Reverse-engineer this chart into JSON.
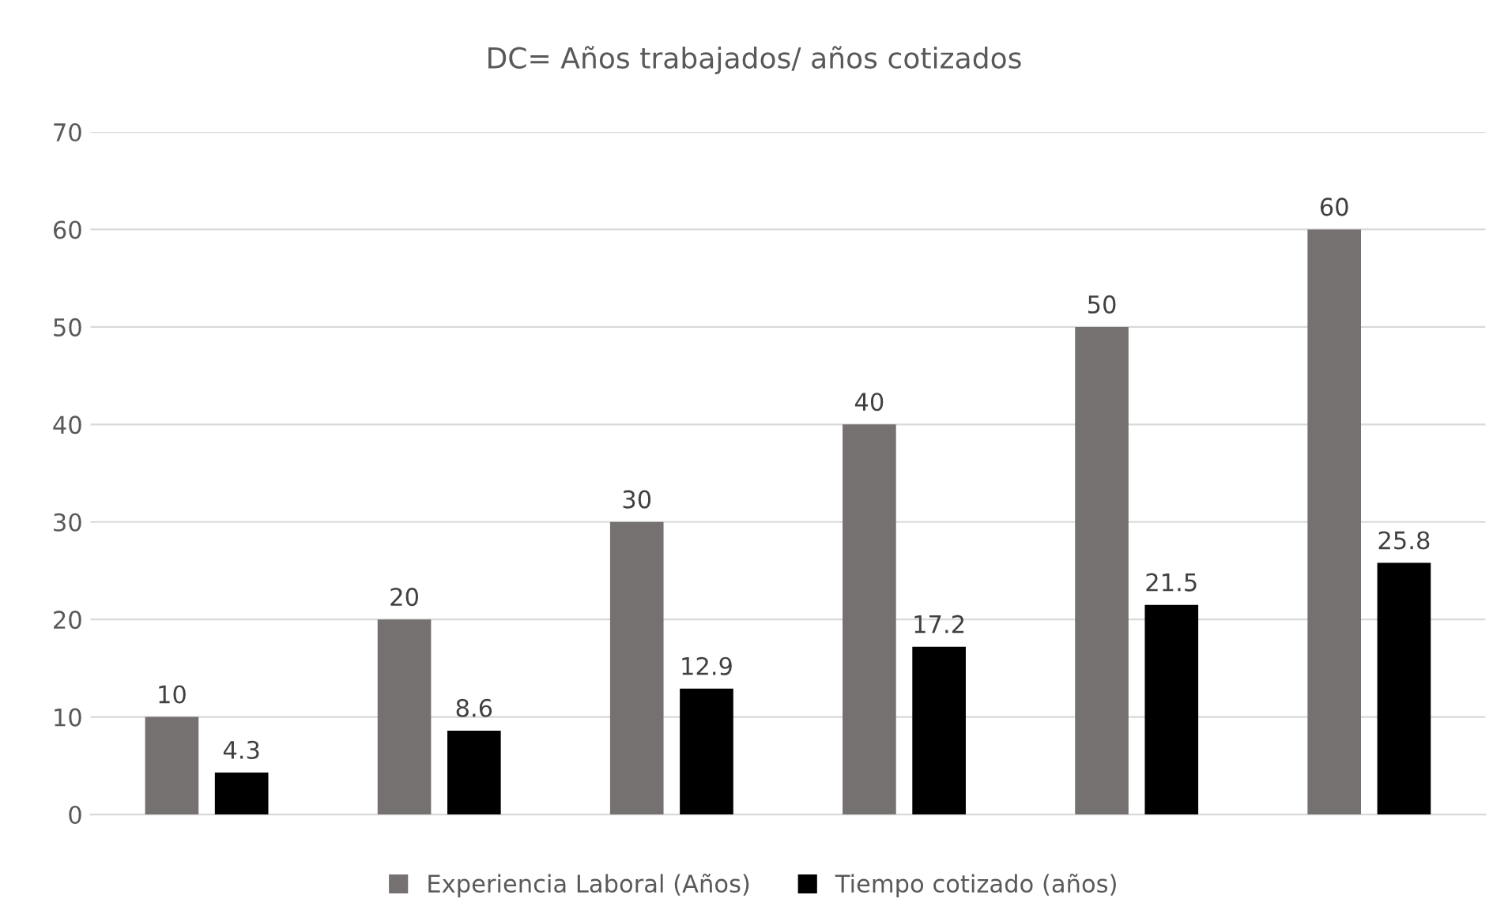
{
  "chart_data": {
    "type": "bar",
    "title": "DC= Años trabajados/ años cotizados",
    "categories": [
      null,
      null,
      null,
      null,
      null,
      null
    ],
    "series": [
      {
        "name": "Experiencia Laboral (Años)",
        "color": "#767171",
        "values": [
          10,
          20,
          30,
          40,
          50,
          60
        ]
      },
      {
        "name": "Tiempo cotizado (años)",
        "color": "#000000",
        "values": [
          4.3,
          8.6,
          12.9,
          17.2,
          21.5,
          25.8
        ]
      }
    ],
    "ylim": [
      0,
      70
    ],
    "yticks": [
      0,
      10,
      20,
      30,
      40,
      50,
      60,
      70
    ],
    "grid": "y",
    "legend": "bottom",
    "data_labels": true
  }
}
